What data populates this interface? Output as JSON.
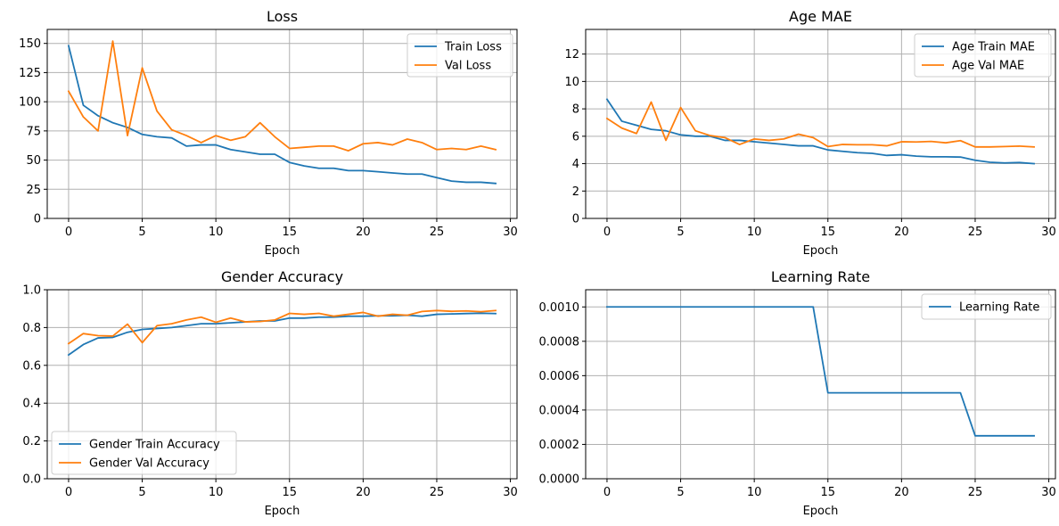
{
  "chart_data": [
    {
      "type": "line",
      "title": "Loss",
      "xlabel": "Epoch",
      "ylabel": "",
      "xlim": [
        -1.45,
        30.45
      ],
      "ylim": [
        0,
        162
      ],
      "xticks": [
        0,
        5,
        10,
        15,
        20,
        25,
        30
      ],
      "yticks": [
        0,
        25,
        50,
        75,
        100,
        125,
        150
      ],
      "grid": true,
      "legend": "top-right",
      "x": [
        0,
        1,
        2,
        3,
        4,
        5,
        6,
        7,
        8,
        9,
        10,
        11,
        12,
        13,
        14,
        15,
        16,
        17,
        18,
        19,
        20,
        21,
        22,
        23,
        24,
        25,
        26,
        27,
        28,
        29
      ],
      "series": [
        {
          "name": "Train Loss",
          "color": "#1f77b4",
          "values": [
            148,
            97,
            88,
            82,
            78,
            72,
            70,
            69,
            62,
            63,
            63,
            59,
            57,
            55,
            55,
            48,
            45,
            43,
            43,
            41,
            41,
            40,
            39,
            38,
            38,
            35,
            32,
            31,
            31,
            30
          ]
        },
        {
          "name": "Val Loss",
          "color": "#ff7f0e",
          "values": [
            109,
            87,
            75,
            152,
            71,
            129,
            92,
            76,
            71,
            65,
            71,
            67,
            70,
            82,
            70,
            60,
            61,
            62,
            62,
            58,
            64,
            65,
            63,
            68,
            65,
            59,
            60,
            59,
            62,
            59
          ]
        }
      ]
    },
    {
      "type": "line",
      "title": "Age MAE",
      "xlabel": "Epoch",
      "ylabel": "",
      "xlim": [
        -1.45,
        30.45
      ],
      "ylim": [
        0,
        13.8
      ],
      "xticks": [
        0,
        5,
        10,
        15,
        20,
        25,
        30
      ],
      "yticks": [
        0,
        2,
        4,
        6,
        8,
        10,
        12
      ],
      "grid": true,
      "legend": "top-right",
      "x": [
        0,
        1,
        2,
        3,
        4,
        5,
        6,
        7,
        8,
        9,
        10,
        11,
        12,
        13,
        14,
        15,
        16,
        17,
        18,
        19,
        20,
        21,
        22,
        23,
        24,
        25,
        26,
        27,
        28,
        29
      ],
      "series": [
        {
          "name": "Age Train MAE",
          "color": "#1f77b4",
          "values": [
            8.7,
            7.1,
            6.8,
            6.5,
            6.4,
            6.1,
            6.0,
            6.0,
            5.7,
            5.7,
            5.6,
            5.5,
            5.4,
            5.3,
            5.3,
            5.0,
            4.9,
            4.8,
            4.75,
            4.6,
            4.65,
            4.55,
            4.5,
            4.5,
            4.48,
            4.25,
            4.1,
            4.05,
            4.08,
            4.0
          ]
        },
        {
          "name": "Age Val MAE",
          "color": "#ff7f0e",
          "values": [
            7.3,
            6.6,
            6.2,
            8.5,
            5.7,
            8.1,
            6.4,
            6.05,
            5.9,
            5.4,
            5.8,
            5.7,
            5.8,
            6.15,
            5.9,
            5.25,
            5.4,
            5.38,
            5.38,
            5.3,
            5.6,
            5.58,
            5.62,
            5.52,
            5.68,
            5.22,
            5.22,
            5.25,
            5.28,
            5.22
          ]
        }
      ]
    },
    {
      "type": "line",
      "title": "Gender Accuracy",
      "xlabel": "Epoch",
      "ylabel": "",
      "xlim": [
        -1.45,
        30.45
      ],
      "ylim": [
        0,
        1.0
      ],
      "xticks": [
        0,
        5,
        10,
        15,
        20,
        25,
        30
      ],
      "yticks": [
        0.0,
        0.2,
        0.4,
        0.6,
        0.8,
        1.0
      ],
      "grid": true,
      "legend": "bottom-left",
      "x": [
        0,
        1,
        2,
        3,
        4,
        5,
        6,
        7,
        8,
        9,
        10,
        11,
        12,
        13,
        14,
        15,
        16,
        17,
        18,
        19,
        20,
        21,
        22,
        23,
        24,
        25,
        26,
        27,
        28,
        29
      ],
      "series": [
        {
          "name": "Gender Train Accuracy",
          "color": "#1f77b4",
          "values": [
            0.655,
            0.71,
            0.745,
            0.748,
            0.775,
            0.79,
            0.795,
            0.8,
            0.81,
            0.82,
            0.82,
            0.825,
            0.83,
            0.835,
            0.835,
            0.85,
            0.85,
            0.855,
            0.855,
            0.86,
            0.86,
            0.862,
            0.862,
            0.865,
            0.86,
            0.87,
            0.872,
            0.874,
            0.876,
            0.874
          ]
        },
        {
          "name": "Gender Val Accuracy",
          "color": "#ff7f0e",
          "values": [
            0.715,
            0.768,
            0.757,
            0.755,
            0.818,
            0.72,
            0.81,
            0.82,
            0.84,
            0.855,
            0.828,
            0.85,
            0.83,
            0.832,
            0.84,
            0.875,
            0.87,
            0.875,
            0.86,
            0.87,
            0.88,
            0.86,
            0.87,
            0.865,
            0.885,
            0.89,
            0.886,
            0.888,
            0.884,
            0.89
          ]
        }
      ]
    },
    {
      "type": "line",
      "title": "Learning Rate",
      "xlabel": "Epoch",
      "ylabel": "",
      "xlim": [
        -1.45,
        30.45
      ],
      "ylim": [
        0,
        0.0011
      ],
      "xticks": [
        0,
        5,
        10,
        15,
        20,
        25,
        30
      ],
      "yticks": [
        0.0,
        0.0002,
        0.0004,
        0.0006,
        0.0008,
        0.001
      ],
      "ytick_labels": [
        "0.0000",
        "0.0002",
        "0.0004",
        "0.0006",
        "0.0008",
        "0.0010"
      ],
      "grid": true,
      "legend": "top-right",
      "x": [
        0,
        1,
        2,
        3,
        4,
        5,
        6,
        7,
        8,
        9,
        10,
        11,
        12,
        13,
        14,
        15,
        16,
        17,
        18,
        19,
        20,
        21,
        22,
        23,
        24,
        25,
        26,
        27,
        28,
        29
      ],
      "series": [
        {
          "name": "Learning Rate",
          "color": "#1f77b4",
          "values": [
            0.001,
            0.001,
            0.001,
            0.001,
            0.001,
            0.001,
            0.001,
            0.001,
            0.001,
            0.001,
            0.001,
            0.001,
            0.001,
            0.001,
            0.001,
            0.0005,
            0.0005,
            0.0005,
            0.0005,
            0.0005,
            0.0005,
            0.0005,
            0.0005,
            0.0005,
            0.0005,
            0.00025,
            0.00025,
            0.00025,
            0.00025,
            0.00025
          ]
        }
      ]
    }
  ]
}
